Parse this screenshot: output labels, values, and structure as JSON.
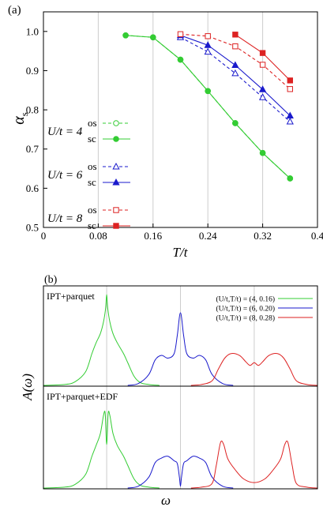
{
  "panel_a": {
    "label": "(a)",
    "ylabel_main": "α",
    "ylabel_sub": "s",
    "xlabel": "T/t",
    "legend": [
      {
        "group": "U/t = 4",
        "os": "os",
        "sc": "sc"
      },
      {
        "group": "U/t = 6",
        "os": "os",
        "sc": "sc"
      },
      {
        "group": "U/t = 8",
        "os": "os",
        "sc": "sc"
      }
    ],
    "colors": {
      "u4": "#33cc33",
      "u6": "#1a1acc",
      "u8": "#dd2222"
    }
  },
  "panel_b": {
    "label": "(b)",
    "top_label": "IPT+parquet",
    "bottom_label": "IPT+parquet+EDF",
    "ylabel": "A(ω)",
    "xlabel": "ω",
    "legend": [
      "(U/t,T/t) = (4, 0.16)",
      "(U/t,T/t) = (6, 0.20)",
      "(U/t,T/t) = (8, 0.28)"
    ]
  },
  "chart_data": [
    {
      "type": "line",
      "xlim": [
        0,
        0.4
      ],
      "ylim": [
        0.5,
        1.05
      ],
      "xticks": [
        0,
        0.08,
        0.16,
        0.24,
        0.32,
        0.4
      ],
      "xtick_labels": [
        "0",
        "0.08",
        "0.16",
        "0.24",
        "0.32",
        "0.4"
      ],
      "yticks": [
        0.5,
        0.6,
        0.7,
        0.8,
        0.9,
        1.0
      ],
      "ytick_labels": [
        "0.5",
        "0.6",
        "0.7",
        "0.8",
        "0.9",
        "1.0"
      ],
      "grid": "vertical",
      "series": [
        {
          "name": "os",
          "group": "U/t = 4",
          "color": "#33cc33",
          "dash": true,
          "marker": "circle-open",
          "x": [
            0.12,
            0.16,
            0.2,
            0.24,
            0.28,
            0.32,
            0.36
          ],
          "y": [
            0.99,
            0.985,
            0.928,
            0.848,
            0.766,
            0.69,
            0.625
          ]
        },
        {
          "name": "sc",
          "group": "U/t = 4",
          "color": "#33cc33",
          "dash": false,
          "marker": "circle-filled",
          "x": [
            0.12,
            0.16,
            0.2,
            0.24,
            0.28,
            0.32,
            0.36
          ],
          "y": [
            0.99,
            0.985,
            0.928,
            0.848,
            0.766,
            0.69,
            0.625
          ]
        },
        {
          "name": "os",
          "group": "U/t = 6",
          "color": "#1a1acc",
          "dash": true,
          "marker": "triangle-open",
          "x": [
            0.2,
            0.24,
            0.28,
            0.32,
            0.36
          ],
          "y": [
            0.985,
            0.948,
            0.893,
            0.832,
            0.77
          ]
        },
        {
          "name": "sc",
          "group": "U/t = 6",
          "color": "#1a1acc",
          "dash": false,
          "marker": "triangle-filled",
          "x": [
            0.2,
            0.24,
            0.28,
            0.32,
            0.36
          ],
          "y": [
            0.99,
            0.965,
            0.914,
            0.852,
            0.785
          ]
        },
        {
          "name": "os",
          "group": "U/t = 8",
          "color": "#dd2222",
          "dash": true,
          "marker": "square-open",
          "x": [
            0.2,
            0.24,
            0.28,
            0.32,
            0.36
          ],
          "y": [
            0.993,
            0.988,
            0.962,
            0.915,
            0.853
          ]
        },
        {
          "name": "sc",
          "group": "U/t = 8",
          "color": "#dd2222",
          "dash": false,
          "marker": "square-filled",
          "x": [
            0.28,
            0.32,
            0.36
          ],
          "y": [
            0.992,
            0.945,
            0.875
          ]
        }
      ]
    },
    {
      "type": "line",
      "xlim": [
        -5,
        8
      ],
      "grid": "vertical",
      "gridlines_x": [
        -2,
        1.5,
        5
      ],
      "panels": [
        {
          "name": "IPT+parquet",
          "series": [
            {
              "name": "(U/t,T/t) = (4, 0.16)",
              "color": "#33cc33",
              "x": [
                -5,
                -4,
                -3.5,
                -3,
                -2.7,
                -2.5,
                -2.3,
                -2.15,
                -2.05,
                -2,
                -1.95,
                -1.85,
                -1.7,
                -1.5,
                -1.2,
                -1,
                -0.7,
                -0.4,
                0,
                0.5
              ],
              "y": [
                0,
                0.01,
                0.04,
                0.15,
                0.35,
                0.47,
                0.57,
                0.7,
                0.85,
                1.0,
                0.85,
                0.7,
                0.57,
                0.47,
                0.35,
                0.25,
                0.1,
                0.03,
                0.01,
                0
              ]
            },
            {
              "name": "(U/t,T/t) = (6, 0.20)",
              "color": "#1a1acc",
              "x": [
                -1,
                -0.5,
                0,
                0.3,
                0.6,
                0.9,
                1.2,
                1.35,
                1.5,
                1.65,
                1.8,
                2.1,
                2.4,
                2.7,
                3.0,
                3.5,
                4.0
              ],
              "y": [
                0,
                0.02,
                0.12,
                0.28,
                0.33,
                0.3,
                0.35,
                0.55,
                0.8,
                0.55,
                0.35,
                0.3,
                0.33,
                0.28,
                0.12,
                0.02,
                0
              ]
            },
            {
              "name": "(U/t,T/t) = (8, 0.28)",
              "color": "#dd2222",
              "x": [
                2,
                2.5,
                3,
                3.3,
                3.6,
                3.9,
                4.3,
                4.6,
                4.8,
                5,
                5.2,
                5.4,
                5.7,
                6.1,
                6.4,
                6.7,
                7,
                7.5,
                8
              ],
              "y": [
                0,
                0.01,
                0.05,
                0.18,
                0.3,
                0.35,
                0.33,
                0.26,
                0.22,
                0.25,
                0.22,
                0.26,
                0.33,
                0.35,
                0.3,
                0.18,
                0.05,
                0.01,
                0
              ]
            }
          ]
        },
        {
          "name": "IPT+parquet+EDF",
          "series": [
            {
              "name": "(U/t,T/t) = (4, 0.16)",
              "color": "#33cc33",
              "x": [
                -5,
                -4,
                -3.5,
                -3,
                -2.7,
                -2.5,
                -2.3,
                -2.15,
                -2.07,
                -2,
                -1.93,
                -1.85,
                -1.7,
                -1.5,
                -1.2,
                -1,
                -0.7,
                -0.4,
                0,
                0.5
              ],
              "y": [
                0,
                0.01,
                0.04,
                0.15,
                0.35,
                0.47,
                0.6,
                0.8,
                0.82,
                0.48,
                0.82,
                0.8,
                0.6,
                0.47,
                0.35,
                0.25,
                0.1,
                0.03,
                0.01,
                0
              ]
            },
            {
              "name": "(U/t,T/t) = (6, 0.20)",
              "color": "#1a1acc",
              "x": [
                -1,
                -0.5,
                0,
                0.3,
                0.6,
                0.9,
                1.2,
                1.35,
                1.45,
                1.5,
                1.55,
                1.65,
                1.8,
                2.1,
                2.4,
                2.7,
                3.0,
                3.5,
                4.0
              ],
              "y": [
                0,
                0.02,
                0.12,
                0.28,
                0.33,
                0.35,
                0.3,
                0.27,
                0.12,
                0.02,
                0.12,
                0.27,
                0.3,
                0.35,
                0.33,
                0.28,
                0.12,
                0.02,
                0
              ]
            },
            {
              "name": "(U/t,T/t) = (8, 0.28)",
              "color": "#dd2222",
              "x": [
                2,
                2.5,
                3,
                3.2,
                3.4,
                3.55,
                3.75,
                4.1,
                4.5,
                5,
                5.5,
                5.9,
                6.25,
                6.45,
                6.6,
                6.8,
                7,
                7.5,
                8
              ],
              "y": [
                0,
                0.01,
                0.05,
                0.25,
                0.5,
                0.48,
                0.32,
                0.2,
                0.1,
                0.06,
                0.1,
                0.2,
                0.32,
                0.48,
                0.5,
                0.25,
                0.05,
                0.01,
                0
              ]
            }
          ]
        }
      ]
    }
  ]
}
